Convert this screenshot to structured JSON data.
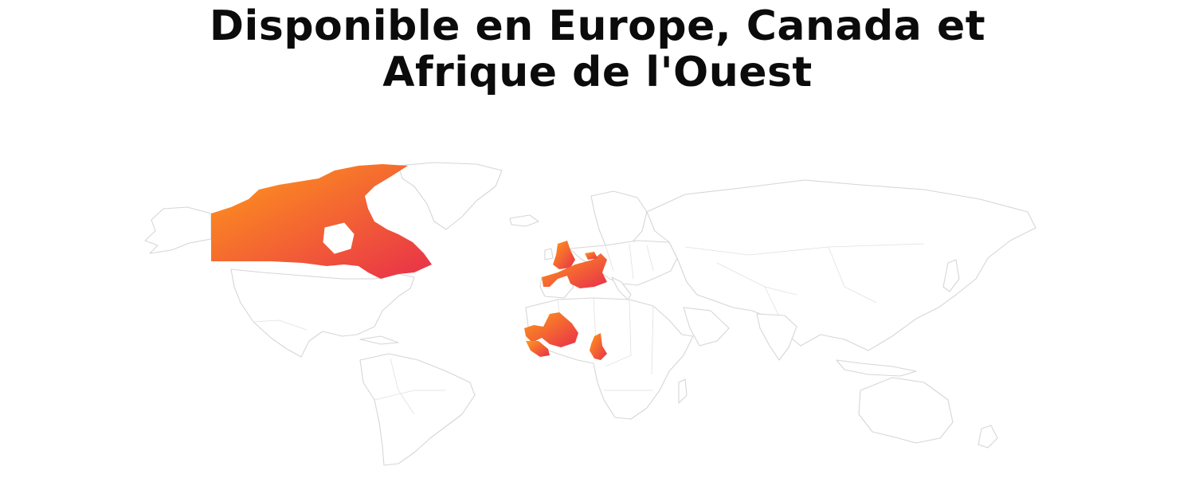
{
  "headline": {
    "line1": "Disponible en Europe, Canada et",
    "line2": "Afrique de l'Ouest"
  },
  "colors": {
    "gradient_start": "#ff9a1a",
    "gradient_end": "#e8304a",
    "land_outline": "#d6d6d6",
    "headline": "#0b0b0b"
  },
  "highlighted_regions": [
    "canada",
    "united-kingdom",
    "france",
    "belgium",
    "mali",
    "senegal",
    "guinea",
    "cameroon"
  ]
}
